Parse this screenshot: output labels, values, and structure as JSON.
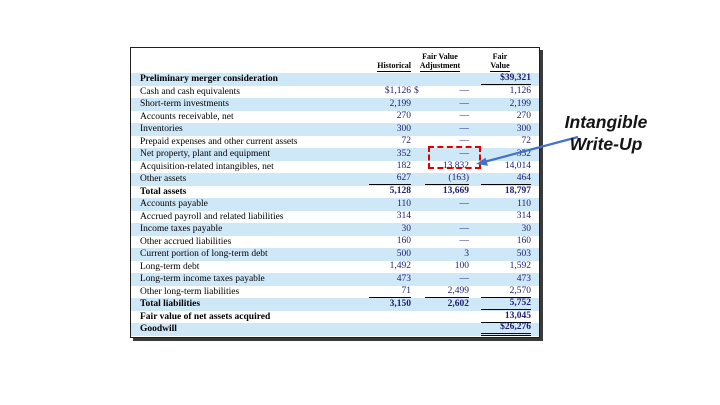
{
  "annotation": {
    "line1": "Intangible",
    "line2": "Write-Up"
  },
  "colors": {
    "row_shade_blue": "#cfe8f8",
    "number_navy": "#1d1d6f",
    "highlight_red": "#e00000",
    "arrow_blue": "#4472c4"
  },
  "table": {
    "headers": {
      "historical": "Historical",
      "adjustment_line1": "Fair Value",
      "adjustment_line2": "Adjustment",
      "fair_line1": "Fair",
      "fair_line2": "Value"
    },
    "rows": [
      {
        "label": "Preliminary merger consideration",
        "hist": "",
        "adj": "",
        "fair": "$39,321",
        "shaded": true,
        "bold": true,
        "u_fair": "single"
      },
      {
        "label": "Cash and cash equivalents",
        "hist": "$1,126",
        "adj": "—",
        "adj_prefix": "$",
        "fair": "1,126",
        "shaded": false,
        "bold": false
      },
      {
        "label": "Short-term investments",
        "hist": "2,199",
        "adj": "—",
        "fair": "2,199",
        "shaded": true,
        "bold": false
      },
      {
        "label": "Accounts receivable, net",
        "hist": "270",
        "adj": "—",
        "fair": "270",
        "shaded": false,
        "bold": false
      },
      {
        "label": "Inventories",
        "hist": "300",
        "adj": "—",
        "fair": "300",
        "shaded": true,
        "bold": false
      },
      {
        "label": "Prepaid expenses and other current assets",
        "hist": "72",
        "adj": "—",
        "fair": "72",
        "shaded": false,
        "bold": false
      },
      {
        "label": "Net property, plant and equipment",
        "hist": "352",
        "adj": "—",
        "fair": "352",
        "shaded": true,
        "bold": false
      },
      {
        "label": "Acquisition-related intangibles, net",
        "hist": "182",
        "adj": "13,832",
        "fair": "14,014",
        "shaded": false,
        "bold": false,
        "highlighted": true
      },
      {
        "label": "Other assets",
        "hist": "627",
        "adj": "(163)",
        "fair": "464",
        "shaded": true,
        "bold": false,
        "u_hist": "single",
        "u_adj": "single",
        "u_fair": "single"
      },
      {
        "label": "Total assets",
        "hist": "5,128",
        "adj": "13,669",
        "fair": "18,797",
        "shaded": false,
        "bold": true
      },
      {
        "label": "Accounts payable",
        "hist": "110",
        "adj": "—",
        "fair": "110",
        "shaded": true,
        "bold": false
      },
      {
        "label": "Accrued payroll and related liabilities",
        "hist": "314",
        "adj": "",
        "fair": "314",
        "shaded": false,
        "bold": false
      },
      {
        "label": "Income taxes payable",
        "hist": "30",
        "adj": "—",
        "fair": "30",
        "shaded": true,
        "bold": false
      },
      {
        "label": "Other accrued liabilities",
        "hist": "160",
        "adj": "—",
        "fair": "160",
        "shaded": false,
        "bold": false
      },
      {
        "label": "Current portion of long-term debt",
        "hist": "500",
        "adj": "3",
        "fair": "503",
        "shaded": true,
        "bold": false
      },
      {
        "label": "Long-term debt",
        "hist": "1,492",
        "adj": "100",
        "fair": "1,592",
        "shaded": false,
        "bold": false
      },
      {
        "label": "Long-term income taxes payable",
        "hist": "473",
        "adj": "—",
        "fair": "473",
        "shaded": true,
        "bold": false
      },
      {
        "label": "Other long-term liabilities",
        "hist": "71",
        "adj": "2,499",
        "fair": "2,570",
        "shaded": false,
        "bold": false,
        "u_hist": "single",
        "u_adj": "single",
        "u_fair": "single"
      },
      {
        "label": "Total liabilities",
        "hist": "3,150",
        "adj": "2,602",
        "fair": "5,752",
        "shaded": true,
        "bold": true,
        "u_fair": "single"
      },
      {
        "label": "Fair value of net assets acquired",
        "hist": "",
        "adj": "",
        "fair": "13,045",
        "shaded": false,
        "bold": true,
        "u_fair": "single"
      },
      {
        "label": "Goodwill",
        "hist": "",
        "adj": "",
        "fair": "$26,276",
        "shaded": true,
        "bold": true,
        "u_fair": "double"
      }
    ]
  }
}
